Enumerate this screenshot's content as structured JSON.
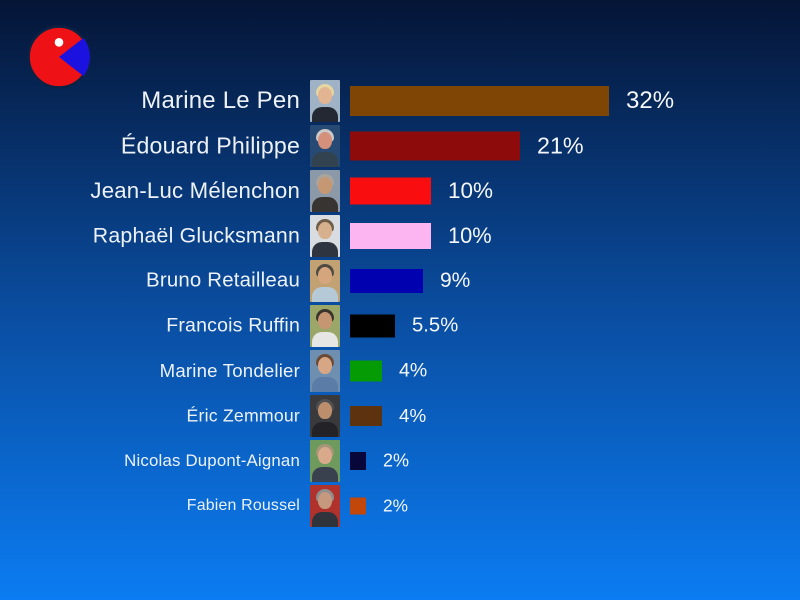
{
  "background": {
    "top_color": "#051536",
    "mid_color": "#0a4da0",
    "bottom_color": "#0b7cf2"
  },
  "text_color": "#edf2f8",
  "logo": {
    "description": "pie-chart-logo",
    "circle_color": "#ee1216",
    "wedge_color": "#1b12e0",
    "dot_color": "#ffffff",
    "outline_color": "#0b2244"
  },
  "chart_data": {
    "type": "bar",
    "orientation": "horizontal",
    "title": "",
    "xlabel": "",
    "ylabel": "",
    "grid": false,
    "legend": false,
    "xlim": [
      0,
      33
    ],
    "categories": [
      "Marine Le Pen",
      "Édouard Philippe",
      "Jean-Luc Mélenchon",
      "Raphaël Glucksmann",
      "Bruno Retailleau",
      "Francois Ruffin",
      "Marine Tondelier",
      "Éric Zemmour",
      "Nicolas Dupont-Aignan",
      "Fabien Roussel"
    ],
    "values": [
      32,
      21,
      10,
      10,
      9,
      5.5,
      4,
      4,
      2,
      2
    ],
    "value_labels": [
      "32%",
      "21%",
      "10%",
      "10%",
      "9%",
      "5.5%",
      "4%",
      "4%",
      "2%",
      "2%"
    ],
    "bar_colors": [
      "#7f4504",
      "#8e0b0b",
      "#f90d0e",
      "#fdb5f2",
      "#0101af",
      "#000000",
      "#049b04",
      "#5c330e",
      "#07073a",
      "#c2470a"
    ]
  },
  "rows": [
    {
      "name": "Marine Le Pen",
      "value": 32,
      "label": "32%",
      "color": "#7f4504",
      "photo": {
        "bg": "#9fb2c6",
        "hair": "#e6d6a0",
        "skin": "#e2b492",
        "shirt": "#232833"
      }
    },
    {
      "name": "Édouard Philippe",
      "value": 21,
      "label": "21%",
      "color": "#8e0b0b",
      "photo": {
        "bg": "#274a74",
        "hair": "#c9c9c9",
        "skin": "#d4907a",
        "shirt": "#33424f"
      }
    },
    {
      "name": "Jean-Luc Mélenchon",
      "value": 10,
      "label": "10%",
      "color": "#f90d0e",
      "photo": {
        "bg": "#8c99a8",
        "hair": "#a9a49c",
        "skin": "#c59873",
        "shirt": "#373431"
      }
    },
    {
      "name": "Raphaël Glucksmann",
      "value": 10,
      "label": "10%",
      "color": "#fdb5f2",
      "photo": {
        "bg": "#d9dde1",
        "hair": "#6e5e48",
        "skin": "#d7b08e",
        "shirt": "#2f3540"
      }
    },
    {
      "name": "Bruno Retailleau",
      "value": 9,
      "label": "9%",
      "color": "#0101af",
      "photo": {
        "bg": "#c2a173",
        "hair": "#4e4a42",
        "skin": "#d5a67e",
        "shirt": "#b5c9d6"
      }
    },
    {
      "name": "Francois Ruffin",
      "value": 5.5,
      "label": "5.5%",
      "color": "#000000",
      "photo": {
        "bg": "#9aa768",
        "hair": "#3a332b",
        "skin": "#c69673",
        "shirt": "#e6e6e4"
      }
    },
    {
      "name": "Marine Tondelier",
      "value": 4,
      "label": "4%",
      "color": "#049b04",
      "photo": {
        "bg": "#6e8fb0",
        "hair": "#6b4a37",
        "skin": "#d6a685",
        "shirt": "#5b7ca6"
      }
    },
    {
      "name": "Éric Zemmour",
      "value": 4,
      "label": "4%",
      "color": "#5c330e",
      "photo": {
        "bg": "#3a3a3c",
        "hair": "#505052",
        "skin": "#bd8e6c",
        "shirt": "#232327"
      }
    },
    {
      "name": "Nicolas Dupont-Aignan",
      "value": 2,
      "label": "2%",
      "color": "#07073a",
      "photo": {
        "bg": "#6e9a5e",
        "hair": "#a59778",
        "skin": "#d8a98a",
        "shirt": "#39414e"
      }
    },
    {
      "name": "Fabien Roussel",
      "value": 2,
      "label": "2%",
      "color": "#c2470a",
      "photo": {
        "bg": "#af332c",
        "hair": "#8f8f8f",
        "skin": "#c6997e",
        "shirt": "#2f333b"
      }
    }
  ]
}
